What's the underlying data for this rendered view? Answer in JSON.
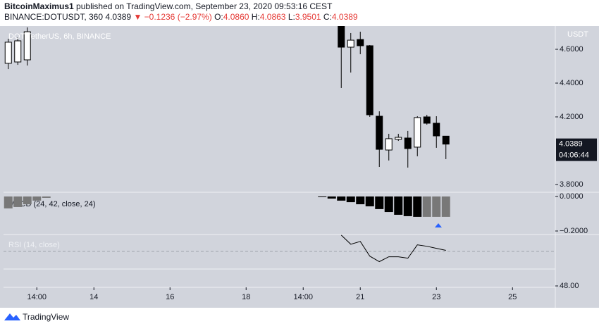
{
  "header": {
    "author": "BitcoinMaximus1",
    "published": "published on TradingView.com, September 23, 2020 09:53:16 CEST",
    "symbol": "BINANCE:DOTUSDT, 360",
    "last": "4.0389",
    "change": "▼ −0.1236 (−2.97%)",
    "ohlc": [
      {
        "label": "O:",
        "value": "4.0860"
      },
      {
        "label": "H:",
        "value": "4.0863"
      },
      {
        "label": "L:",
        "value": "3.9501"
      },
      {
        "label": "C:",
        "value": "4.0389"
      }
    ]
  },
  "chart_data": [
    {
      "type": "candlestick",
      "legend": "DOT/TetherUS, 6h, BINANCE",
      "axis_unit": "USDT",
      "countdown": "04:06:44",
      "x": [
        0.5,
        1.5,
        2.5,
        35.5,
        36.5,
        37.5,
        38.5,
        39.5,
        40.5,
        41.5,
        42.5,
        43.5,
        44.5,
        45.5,
        46.5
      ],
      "open": [
        4.517,
        4.525,
        4.5375,
        4.74,
        4.6125,
        4.658,
        4.621,
        4.204,
        4.004,
        4.067,
        4.075,
        4.021,
        4.2,
        4.1625,
        4.086
      ],
      "high": [
        4.6625,
        4.67,
        4.73,
        4.74,
        4.696,
        4.704,
        4.625,
        4.233,
        4.1,
        4.1,
        4.117,
        4.204,
        4.2125,
        4.204,
        4.0863
      ],
      "low": [
        4.483,
        4.508,
        4.504,
        4.371,
        4.4625,
        4.571,
        4.2,
        3.904,
        3.942,
        4.058,
        3.9,
        3.967,
        4.154,
        4.017,
        3.9501
      ],
      "close": [
        4.642,
        4.65,
        4.704,
        4.6125,
        4.654,
        4.621,
        4.2125,
        4.008,
        4.071,
        4.079,
        4.0125,
        4.196,
        4.1625,
        4.0875,
        4.0389
      ],
      "up_color": "#ffffff",
      "down_color": "#000000",
      "xlim": [
        0,
        58
      ],
      "ylim": [
        3.754,
        4.7375
      ],
      "yticks": [
        {
          "value": 3.8,
          "label": "3.8000"
        },
        {
          "value": 4.2,
          "label": "4.2000"
        },
        {
          "value": 4.4,
          "label": "4.4000"
        },
        {
          "value": 4.6,
          "label": "4.6000"
        }
      ]
    },
    {
      "type": "bar",
      "title": "MACD (24, 42, close, 24)",
      "x": [
        0.5,
        1.5,
        2.5,
        3.5,
        4.5,
        33.5,
        34.5,
        35.5,
        36.5,
        37.5,
        38.5,
        39.5,
        40.5,
        41.5,
        42.5,
        43.5,
        44.5,
        45.5,
        46.5
      ],
      "values": [
        -0.069,
        -0.061,
        -0.045,
        -0.024,
        -0.008,
        -0.004,
        -0.012,
        -0.024,
        -0.033,
        -0.045,
        -0.057,
        -0.073,
        -0.09,
        -0.106,
        -0.114,
        -0.118,
        -0.118,
        -0.118,
        -0.118
      ],
      "colors": [
        "#787878",
        "#787878",
        "#787878",
        "#787878",
        "#787878",
        "#000000",
        "#000000",
        "#000000",
        "#000000",
        "#000000",
        "#000000",
        "#000000",
        "#000000",
        "#000000",
        "#000000",
        "#000000",
        "#787878",
        "#787878",
        "#787878"
      ],
      "xlim": [
        0,
        58
      ],
      "ylim": [
        -0.2204,
        0.0245
      ],
      "yticks": [
        {
          "value": 0,
          "label": "0.0000"
        },
        {
          "value": -0.2,
          "label": "−0.2000"
        }
      ]
    },
    {
      "type": "line",
      "title": "RSI (14, close)",
      "color": "#000000",
      "x": [
        35.5,
        36.5,
        37.5,
        38.5,
        39.5,
        40.5,
        41.5,
        42.5,
        43.5,
        44.5,
        45.5,
        46.5
      ],
      "values": [
        80.4,
        74.6,
        76.4,
        67,
        63.5,
        66.6,
        66.6,
        65.7,
        74.2,
        73.3,
        72,
        70.7
      ],
      "xlim": [
        0,
        58
      ],
      "ylim": [
        47.1,
        80.8
      ],
      "yticks": [
        {
          "value": 48,
          "label": "48.00"
        }
      ],
      "xticks": [
        {
          "value": 3.5,
          "label": "14:00"
        },
        {
          "value": 9.5,
          "label": "14"
        },
        {
          "value": 17.5,
          "label": "16"
        },
        {
          "value": 25.5,
          "label": "18"
        },
        {
          "value": 31.5,
          "label": "14:00"
        },
        {
          "value": 37.5,
          "label": "21"
        },
        {
          "value": 45.5,
          "label": "23"
        },
        {
          "value": 53.5,
          "label": "25"
        }
      ]
    }
  ],
  "footer": {
    "brand": "TradingView"
  }
}
